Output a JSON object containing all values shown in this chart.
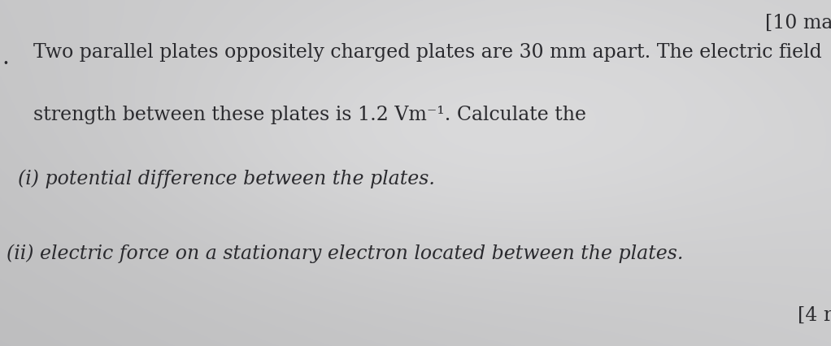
{
  "background_color": "#c8c8cc",
  "background_center_color": "#d8d8da",
  "top_right_text": "[10 ma",
  "bottom_right_text": "[4 r",
  "bullet_char": ".",
  "line1": "Two parallel plates oppositely charged plates are 30 mm apart. The electric field",
  "line2": "strength between these plates is 1.2 Vm⁻¹. Calculate the",
  "line3": "(i) potential difference between the plates.",
  "line4": "(ii) electric force on a stationary electron located between the plates.",
  "font_size_main": 17,
  "font_size_bracket": 17,
  "text_color": "#2a2a2e",
  "fig_width": 10.22,
  "fig_height": 4.26
}
